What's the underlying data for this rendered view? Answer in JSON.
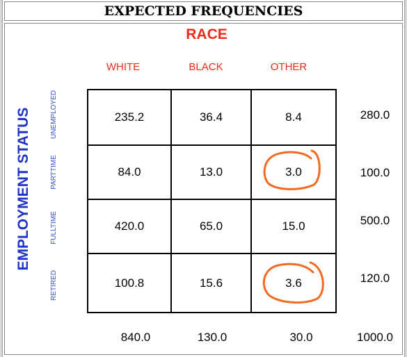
{
  "title": "EXPECTED FREQUENCIES",
  "column_variable": "RACE",
  "row_variable": "EMPLOYMENT STATUS",
  "columns": [
    "WHITE",
    "BLACK",
    "OTHER"
  ],
  "rows": [
    {
      "label": "UNEMPLOYED",
      "cells": [
        "235.2",
        "36.4",
        "8.4"
      ],
      "total": "280.0"
    },
    {
      "label": "PARTTIME",
      "cells": [
        "84.0",
        "13.0",
        "3.0"
      ],
      "total": "100.0"
    },
    {
      "label": "FULLTIME",
      "cells": [
        "420.0",
        "65.0",
        "15.0"
      ],
      "total": "500.0"
    },
    {
      "label": "RETIRED",
      "cells": [
        "100.8",
        "15.6",
        "3.6"
      ],
      "total": "120.0"
    }
  ],
  "column_totals": [
    "840.0",
    "130.0",
    "30.0"
  ],
  "grand_total": "1000.0",
  "colors": {
    "race_heading": "#ee2b1c",
    "row_heading": "#1f33c7",
    "annotation_circle": "#f26a21"
  }
}
